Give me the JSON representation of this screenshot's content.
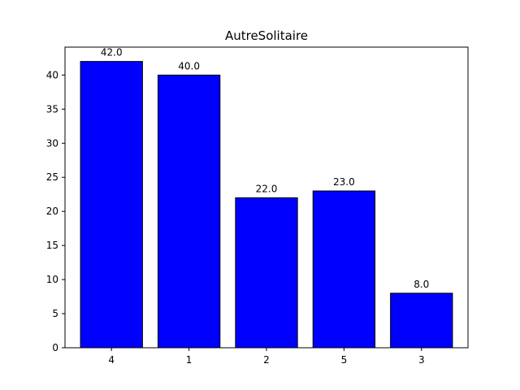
{
  "chart_data": {
    "type": "bar",
    "title": "AutreSolitaire",
    "xlabel": "",
    "ylabel": "",
    "categories": [
      "4",
      "1",
      "2",
      "5",
      "3"
    ],
    "values": [
      42.0,
      40.0,
      22.0,
      23.0,
      8.0
    ],
    "data_labels": [
      "42.0",
      "40.0",
      "22.0",
      "23.0",
      "8.0"
    ],
    "ylim": [
      0,
      44.1
    ],
    "yticks": [
      0,
      5,
      10,
      15,
      20,
      25,
      30,
      35,
      40
    ],
    "grid": false,
    "legend": "none",
    "colors": {
      "bar_fill": "#0000ff",
      "bar_edge": "#000000",
      "axis": "#000000"
    }
  }
}
